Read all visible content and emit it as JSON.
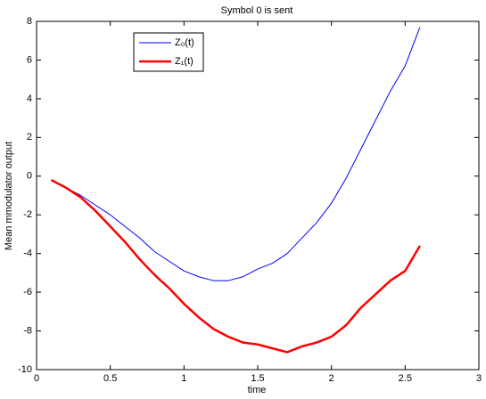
{
  "chart_data": {
    "type": "line",
    "title": "Symbol 0 is sent",
    "x_label": "time",
    "y_label": "Mean mmodulator output",
    "x": [
      0.1,
      0.2,
      0.3,
      0.4,
      0.5,
      0.6,
      0.7,
      0.8,
      0.9,
      1.0,
      1.1,
      1.2,
      1.3,
      1.4,
      1.5,
      1.6,
      1.7,
      1.8,
      1.9,
      2.0,
      2.1,
      2.2,
      2.3,
      2.4,
      2.5,
      2.6
    ],
    "series": [
      {
        "name": "Z₀(t)",
        "color": "#0000ff",
        "line_width": 1,
        "values": [
          -0.2,
          -0.6,
          -1.0,
          -1.5,
          -2.0,
          -2.6,
          -3.2,
          -3.9,
          -4.4,
          -4.9,
          -5.2,
          -5.4,
          -5.4,
          -5.2,
          -4.8,
          -4.5,
          -4.0,
          -3.2,
          -2.4,
          -1.4,
          -0.1,
          1.4,
          2.9,
          4.4,
          5.7,
          7.7
        ]
      },
      {
        "name": "Z₁(t)",
        "color": "#ff0000",
        "line_width": 2.5,
        "values": [
          -0.2,
          -0.6,
          -1.1,
          -1.8,
          -2.6,
          -3.4,
          -4.3,
          -5.1,
          -5.8,
          -6.6,
          -7.3,
          -7.9,
          -8.3,
          -8.6,
          -8.7,
          -8.9,
          -9.1,
          -8.8,
          -8.6,
          -8.3,
          -7.7,
          -6.8,
          -6.1,
          -5.4,
          -4.9,
          -3.6
        ]
      }
    ],
    "xlim": [
      0,
      3
    ],
    "xticks": [
      0,
      0.5,
      1,
      1.5,
      2,
      2.5,
      3
    ],
    "ylim": [
      -10,
      8
    ],
    "yticks": [
      -10,
      -8,
      -6,
      -4,
      -2,
      0,
      2,
      4,
      6,
      8
    ],
    "grid": false,
    "legend": "top-left"
  }
}
